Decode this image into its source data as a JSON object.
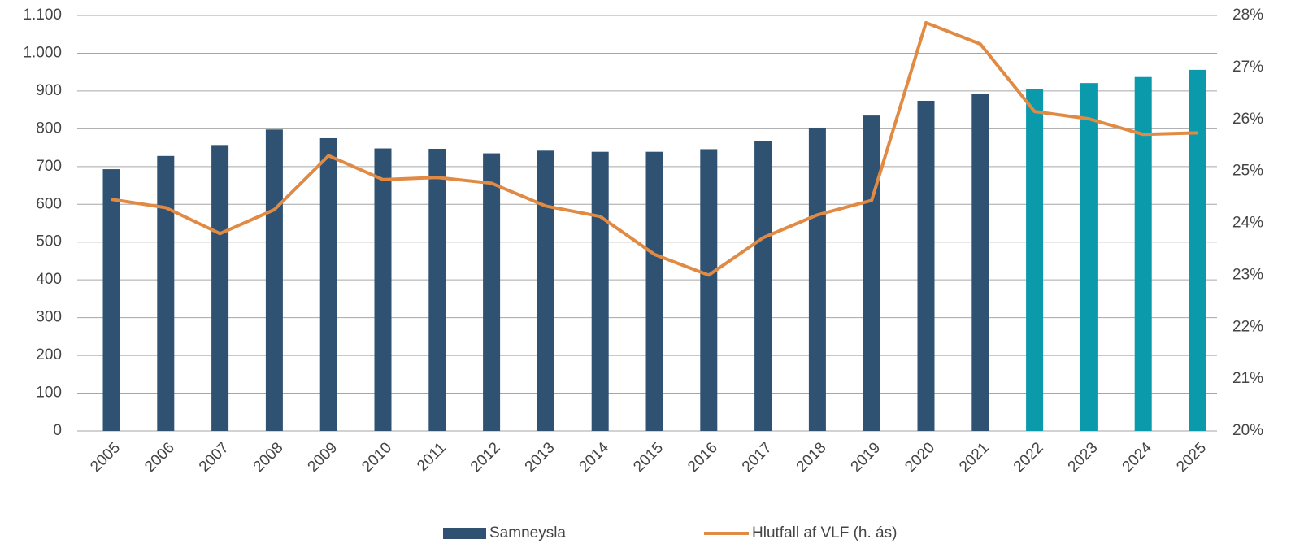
{
  "chart_data": {
    "type": "bar_line",
    "categories": [
      "2005",
      "2006",
      "2007",
      "2008",
      "2009",
      "2010",
      "2011",
      "2012",
      "2013",
      "2014",
      "2015",
      "2016",
      "2017",
      "2018",
      "2019",
      "2020",
      "2021",
      "2022",
      "2023",
      "2024",
      "2025"
    ],
    "series": [
      {
        "name": "Samneysla",
        "type": "bar",
        "color": "#2f5273",
        "colors": [
          "#2f5273",
          "#2f5273",
          "#2f5273",
          "#2f5273",
          "#2f5273",
          "#2f5273",
          "#2f5273",
          "#2f5273",
          "#2f5273",
          "#2f5273",
          "#2f5273",
          "#2f5273",
          "#2f5273",
          "#2f5273",
          "#2f5273",
          "#2f5273",
          "#2f5273",
          "#0a9aab",
          "#0a9aab",
          "#0a9aab",
          "#0a9aab"
        ],
        "values": [
          693,
          728,
          757,
          798,
          775,
          748,
          747,
          735,
          742,
          739,
          739,
          746,
          767,
          803,
          835,
          874,
          893,
          906,
          921,
          937,
          956
        ]
      },
      {
        "name": "Hlutfall af VLF (h. ás)",
        "type": "line",
        "axis": "y2",
        "color": "#e08a43",
        "values": [
          24.46,
          24.3,
          23.8,
          24.26,
          25.3,
          24.84,
          24.88,
          24.77,
          24.33,
          24.13,
          23.4,
          23.0,
          23.72,
          24.16,
          24.44,
          27.86,
          27.45,
          26.15,
          26.01,
          25.71,
          25.74
        ]
      }
    ],
    "ylim": [
      0,
      1100
    ],
    "yticks": [
      0,
      100,
      200,
      300,
      400,
      500,
      600,
      700,
      800,
      900,
      {
        "value": 1000,
        "label": "1.000"
      },
      {
        "value": 1100,
        "label": "1.100"
      }
    ],
    "y2lim": [
      20,
      28
    ],
    "y2ticks": [
      {
        "value": 20,
        "label": "20%"
      },
      {
        "value": 21,
        "label": "21%"
      },
      {
        "value": 22,
        "label": "22%"
      },
      {
        "value": 23,
        "label": "23%"
      },
      {
        "value": 24,
        "label": "24%"
      },
      {
        "value": 25,
        "label": "25%"
      },
      {
        "value": 26,
        "label": "26%"
      },
      {
        "value": 27,
        "label": "27%"
      },
      {
        "value": 28,
        "label": "28%"
      }
    ],
    "grid": true,
    "legend": "bottom"
  }
}
